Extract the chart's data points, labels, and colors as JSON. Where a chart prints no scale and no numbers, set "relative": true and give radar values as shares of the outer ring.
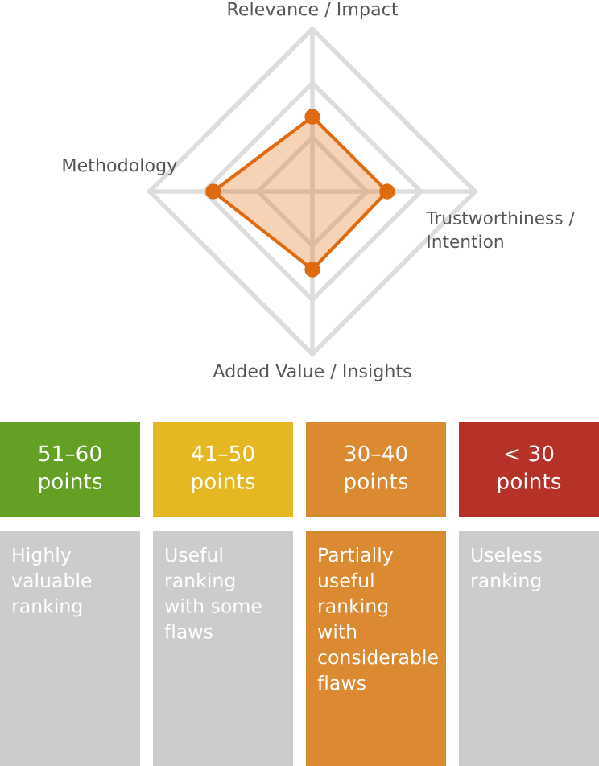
{
  "chart_data": [
    {
      "type": "radar",
      "relative": true,
      "grid": true,
      "marker": "circle",
      "categories": [
        "Relevance / Impact",
        "Trustworthiness /\nIntention",
        "Added Value / Insights",
        "Methodology"
      ],
      "series": [
        {
          "color": "#e06a10",
          "values": [
            0.46,
            0.46,
            0.48,
            0.61
          ]
        }
      ]
    },
    {
      "type": "other",
      "categories": [
        "51–60\npoints",
        "41–50\npoints",
        "30–40\npoints",
        "< 30\npoints"
      ],
      "annotations": [
        "Highly\nvaluable\nranking",
        "Useful\nranking\nwith some\nflaws",
        "Partially\nuseful\nranking\nwith\nconsiderable\nflaws",
        "Useless\nranking"
      ],
      "colors": [
        "#64a024",
        "#e5b823",
        "#dc8a32",
        "#b63228",
        "#cccccc",
        "#cccccc",
        "#dc8a32",
        "#cccccc"
      ]
    }
  ]
}
